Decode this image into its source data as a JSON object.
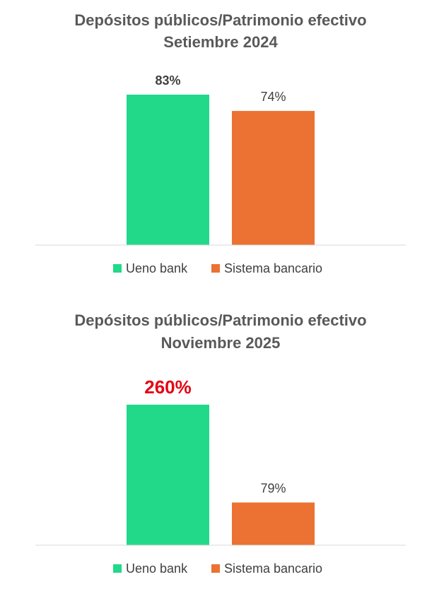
{
  "chart_data": [
    {
      "type": "bar",
      "title": "Depósitos públicos/Patrimonio efectivo",
      "subtitle": "Setiembre 2024",
      "categories": [
        "Ueno bank",
        "Sistema bancario"
      ],
      "values": [
        83,
        74
      ],
      "data_labels": [
        "83%",
        "74%"
      ],
      "unit": "%",
      "colors": [
        "#22d98a",
        "#eb7232"
      ],
      "label_colors": [
        "#404040",
        "#404040"
      ],
      "legend": {
        "position": "bottom",
        "entries": [
          "Ueno bank",
          "Sistema bancario"
        ]
      },
      "ylim": [
        0,
        83
      ],
      "grid": false
    },
    {
      "type": "bar",
      "title": "Depósitos públicos/Patrimonio efectivo",
      "subtitle": "Noviembre 2025",
      "categories": [
        "Ueno bank",
        "Sistema bancario"
      ],
      "values": [
        260,
        79
      ],
      "data_labels": [
        "260%",
        "79%"
      ],
      "unit": "%",
      "colors": [
        "#22d98a",
        "#eb7232"
      ],
      "label_colors": [
        "#e30613",
        "#404040"
      ],
      "legend": {
        "position": "bottom",
        "entries": [
          "Ueno bank",
          "Sistema bancario"
        ]
      },
      "ylim": [
        0,
        260
      ],
      "grid": false
    }
  ]
}
